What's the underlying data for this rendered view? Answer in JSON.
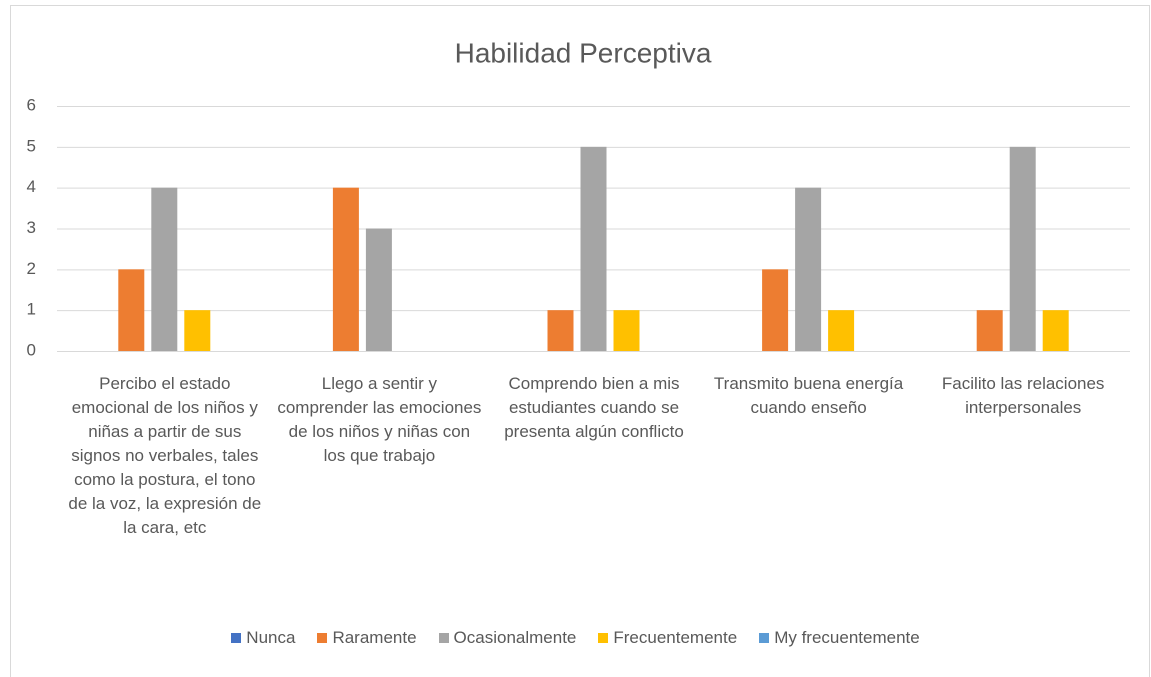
{
  "chart_data": {
    "type": "bar",
    "title": "Habilidad Perceptiva",
    "categories": [
      "Percibo el estado emocional de los niños y niñas a partir de sus signos no verbales, tales como la postura, el tono de la voz, la expresión de la cara, etc",
      "Llego a sentir y comprender las emociones de los niños y niñas con los que trabajo",
      "Comprendo bien a mis estudiantes cuando se presenta algún conflicto",
      "Transmito buena energía cuando enseño",
      "Facilito las relaciones interpersonales"
    ],
    "series": [
      {
        "name": "Nunca",
        "color": "#4472c4",
        "values": [
          0,
          0,
          0,
          0,
          0
        ]
      },
      {
        "name": "Raramente",
        "color": "#ed7d31",
        "values": [
          2,
          4,
          1,
          2,
          1
        ]
      },
      {
        "name": "Ocasionalmente",
        "color": "#a5a5a5",
        "values": [
          4,
          3,
          5,
          4,
          5
        ]
      },
      {
        "name": "Frecuentemente",
        "color": "#ffc000",
        "values": [
          1,
          0,
          1,
          1,
          1
        ]
      },
      {
        "name": "My frecuentemente",
        "color": "#5b9bd5",
        "values": [
          0,
          0,
          0,
          0,
          0
        ]
      }
    ],
    "ylim": [
      0,
      6
    ],
    "yticks": [
      0,
      1,
      2,
      3,
      4,
      5,
      6
    ],
    "grid": true,
    "legend": "bottom"
  }
}
